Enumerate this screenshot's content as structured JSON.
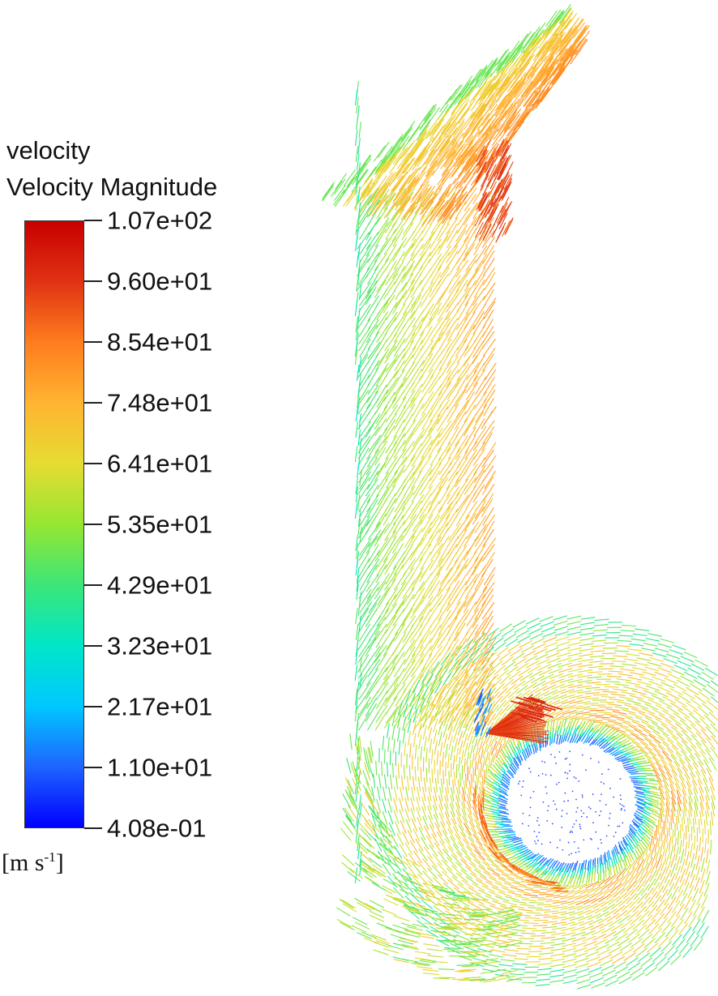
{
  "legend": {
    "variable": "velocity",
    "quantity": "Velocity Magnitude",
    "units_main": "m s",
    "units_exp": "-1",
    "units_open": "[",
    "units_close": "]",
    "ticks": [
      "1.07e+02",
      "9.60e+01",
      "8.54e+01",
      "7.48e+01",
      "6.41e+01",
      "5.35e+01",
      "4.29e+01",
      "3.23e+01",
      "2.17e+01",
      "1.10e+01",
      "4.08e-01"
    ],
    "min": 0.408,
    "max": 107,
    "colors": [
      "#0000ff",
      "#1e64ff",
      "#00c8ff",
      "#00e6c8",
      "#3ce678",
      "#96e632",
      "#e6dc32",
      "#ffb432",
      "#ff7d1e",
      "#e03214",
      "#c80000"
    ]
  },
  "plot": {
    "type": "velocity vector field",
    "geometry": "centrifugal fan volute with outlet duct and impeller",
    "regions": {
      "duct_left_wall": "green-cyan",
      "duct_core": "yellow-orange",
      "duct_bend_inner": "orange-red",
      "tongue": "blue-red",
      "impeller_ring": "blue-green",
      "impeller_center": "blue points",
      "volute_outer": "green-cyan"
    }
  }
}
